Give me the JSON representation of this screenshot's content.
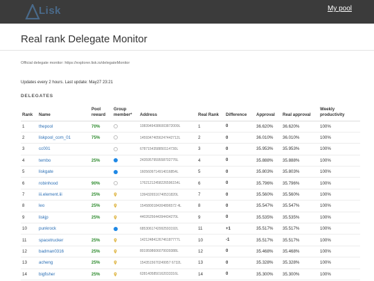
{
  "header": {
    "logo_text": "Lisk",
    "mypool_label": "My pool"
  },
  "page": {
    "title": "Real rank Delegate Monitor",
    "official_text": "Official delegate monitor: https://explorer.lisk.io/delegateMonitor",
    "updates_text": "Updates every 2 hours. Last update: May27 23:21",
    "section_label": "DELEGATES"
  },
  "columns": [
    "Rank",
    "Name",
    "Pool reward",
    "Group member*",
    "Address",
    "Real Rank",
    "Difference",
    "Approval",
    "Real approval",
    "Weekly productivity"
  ],
  "rows": [
    {
      "rank": "1",
      "name": "thepool",
      "reward": "70%",
      "group": "empty",
      "address": "10839494386003872009L",
      "real_rank": "1",
      "diff": "0",
      "approval": "36.620%",
      "real_approval": "36.620%",
      "productivity": "100%"
    },
    {
      "rank": "2",
      "name": "liskpool_com_01",
      "reward": "75%",
      "group": "empty",
      "address": "14593474056247442712L",
      "real_rank": "2",
      "diff": "0",
      "approval": "36.010%",
      "real_approval": "36.010%",
      "productivity": "100%"
    },
    {
      "rank": "3",
      "name": "cc001",
      "reward": "",
      "group": "empty",
      "address": "6787154358850114730L",
      "real_rank": "3",
      "diff": "0",
      "approval": "35.953%",
      "real_approval": "35.953%",
      "productivity": "100%"
    },
    {
      "rank": "4",
      "name": "tembo",
      "reward": "25%",
      "group": "filled",
      "address": "2435957959558702776L",
      "real_rank": "4",
      "diff": "0",
      "approval": "35.888%",
      "real_approval": "35.888%",
      "productivity": "100%"
    },
    {
      "rank": "5",
      "name": "liskgate",
      "reward": "",
      "group": "filled",
      "address": "1605609714914016854L",
      "real_rank": "5",
      "diff": "0",
      "approval": "35.803%",
      "real_approval": "35.803%",
      "productivity": "100%"
    },
    {
      "rank": "6",
      "name": "robinhood",
      "reward": "90%",
      "group": "empty",
      "address": "17621212458226596154L",
      "real_rank": "6",
      "diff": "0",
      "approval": "35.796%",
      "real_approval": "35.796%",
      "productivity": "100%"
    },
    {
      "rank": "7",
      "name": "iii.element.iii",
      "reward": "25%",
      "group": "pin",
      "address": "1394326516740531820L",
      "real_rank": "7",
      "diff": "0",
      "approval": "35.560%",
      "real_approval": "35.560%",
      "productivity": "100%"
    },
    {
      "rank": "8",
      "name": "leo",
      "reward": "25%",
      "group": "pin",
      "address": "1545800184304896572 4L",
      "real_rank": "8",
      "diff": "0",
      "approval": "35.547%",
      "real_approval": "35.547%",
      "productivity": "100%"
    },
    {
      "rank": "9",
      "name": "liskjp",
      "reward": "25%",
      "group": "pin",
      "address": "4402625644394434270L",
      "real_rank": "9",
      "diff": "0",
      "approval": "35.535%",
      "real_approval": "35.535%",
      "productivity": "100%"
    },
    {
      "rank": "10",
      "name": "punkrock",
      "reward": "",
      "group": "filled",
      "address": "6853061742992593192L",
      "real_rank": "11",
      "diff": "+1",
      "approval": "35.517%",
      "real_approval": "35.517%",
      "productivity": "100%"
    },
    {
      "rank": "11",
      "name": "spacetrucker",
      "reward": "25%",
      "group": "pin",
      "address": "14212484126746187777L",
      "real_rank": "10",
      "diff": "-1",
      "approval": "35.517%",
      "real_approval": "35.517%",
      "productivity": "100%"
    },
    {
      "rank": "12",
      "name": "badman0316",
      "reward": "25%",
      "group": "pin",
      "address": "8019598606079939388L",
      "real_rank": "12",
      "diff": "0",
      "approval": "35.468%",
      "real_approval": "35.468%",
      "productivity": "100%"
    },
    {
      "rank": "13",
      "name": "acheng",
      "reward": "25%",
      "group": "pin",
      "address": "1543515670249957 6732L",
      "real_rank": "13",
      "diff": "0",
      "approval": "35.328%",
      "real_approval": "35.328%",
      "productivity": "100%"
    },
    {
      "rank": "14",
      "name": "bigfisher",
      "reward": "25%",
      "group": "pin",
      "address": "6281405850162033316L",
      "real_rank": "14",
      "diff": "0",
      "approval": "35.300%",
      "real_approval": "35.300%",
      "productivity": "100%"
    }
  ]
}
